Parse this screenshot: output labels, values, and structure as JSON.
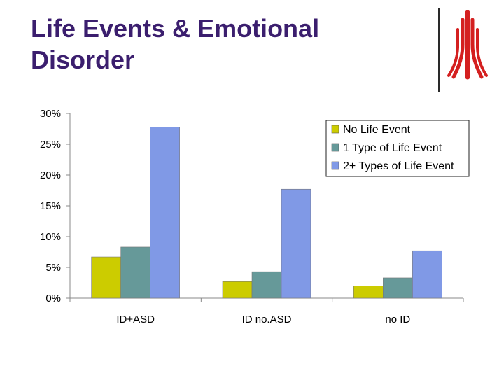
{
  "slide": {
    "title_line1": "Life Events & Emotional",
    "title_line2": "Disorder"
  },
  "logo": {
    "icon": "red-tree-logo-icon",
    "color": "#d42020"
  },
  "chart_data": {
    "type": "bar",
    "title": "",
    "xlabel": "",
    "ylabel": "",
    "categories": [
      "ID+ASD",
      "ID no.ASD",
      "no ID"
    ],
    "series": [
      {
        "name": "No Life Event",
        "color": "#cccc00",
        "values": [
          6.7,
          2.7,
          2.0
        ]
      },
      {
        "name": "1 Type of Life Event",
        "color": "#669999",
        "values": [
          8.3,
          4.3,
          3.3
        ]
      },
      {
        "name": "2+ Types of Life Event",
        "color": "#8099e6",
        "values": [
          27.8,
          17.7,
          7.7
        ]
      }
    ],
    "ylim": [
      0,
      30
    ],
    "yticks": [
      0,
      5,
      10,
      15,
      20,
      25,
      30
    ],
    "ytick_labels": [
      "0%",
      "5%",
      "10%",
      "15%",
      "20%",
      "25%",
      "30%"
    ],
    "legend_position": "top-right",
    "grid": false
  }
}
